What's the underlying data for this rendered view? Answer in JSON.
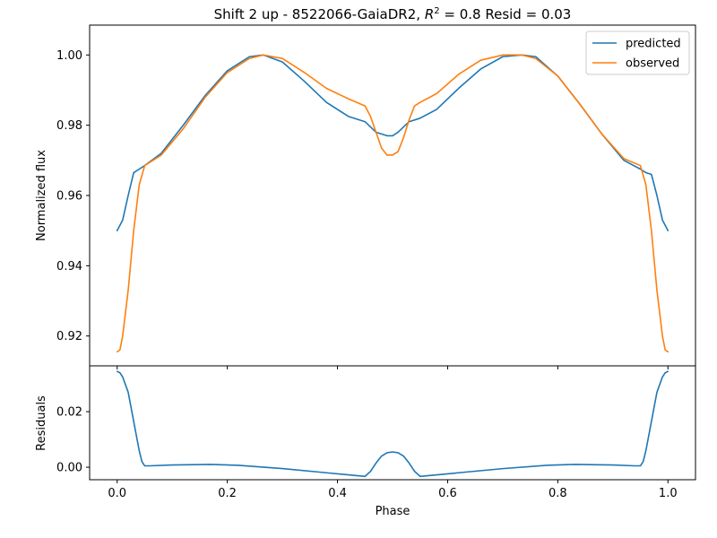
{
  "chart_data": [
    {
      "type": "line",
      "title": "Shift 2 up - 8522066-GaiaDR2, R² = 0.8 Resid = 0.03",
      "title_parts": {
        "prefix": "Shift 2 up - 8522066-GaiaDR2, ",
        "r": "R",
        "sup": "2",
        "suffix": " = 0.8 Resid = 0.03"
      },
      "xlabel": "",
      "ylabel": "Normalized flux",
      "xlim": [
        -0.05,
        1.05
      ],
      "ylim": [
        0.9115,
        1.0085
      ],
      "yticks": [
        0.92,
        0.94,
        0.96,
        0.98,
        1.0
      ],
      "ytick_labels": [
        "0.92",
        "0.94",
        "0.96",
        "0.98",
        "1.00"
      ],
      "grid": false,
      "legend_placement": "top-right",
      "series": [
        {
          "name": "predicted",
          "color": "#1f77b4",
          "x": [
            0,
            0.01,
            0.02,
            0.03,
            0.04,
            0.05,
            0.08,
            0.12,
            0.16,
            0.2,
            0.24,
            0.265,
            0.3,
            0.34,
            0.38,
            0.42,
            0.45,
            0.47,
            0.49,
            0.5,
            0.51,
            0.53,
            0.55,
            0.58,
            0.62,
            0.66,
            0.7,
            0.735,
            0.76,
            0.8,
            0.84,
            0.88,
            0.92,
            0.95,
            0.96,
            0.97,
            0.98,
            0.99,
            1.0
          ],
          "y": [
            0.95,
            0.953,
            0.96,
            0.9665,
            0.9675,
            0.9685,
            0.972,
            0.98,
            0.9885,
            0.9955,
            0.9995,
            1.0,
            0.998,
            0.9925,
            0.9865,
            0.9825,
            0.981,
            0.978,
            0.977,
            0.977,
            0.978,
            0.981,
            0.982,
            0.9845,
            0.9905,
            0.996,
            0.9995,
            1.0,
            0.9995,
            0.994,
            0.986,
            0.9775,
            0.97,
            0.9675,
            0.9665,
            0.966,
            0.96,
            0.953,
            0.95
          ]
        },
        {
          "name": "observed",
          "color": "#ff7f0e",
          "x": [
            0,
            0.005,
            0.01,
            0.02,
            0.03,
            0.04,
            0.05,
            0.08,
            0.12,
            0.16,
            0.2,
            0.24,
            0.265,
            0.3,
            0.34,
            0.38,
            0.42,
            0.45,
            0.46,
            0.47,
            0.48,
            0.49,
            0.5,
            0.51,
            0.52,
            0.53,
            0.54,
            0.55,
            0.58,
            0.62,
            0.66,
            0.7,
            0.735,
            0.76,
            0.8,
            0.84,
            0.88,
            0.92,
            0.95,
            0.96,
            0.97,
            0.98,
            0.99,
            0.995,
            1.0
          ],
          "y": [
            0.9155,
            0.916,
            0.92,
            0.933,
            0.95,
            0.963,
            0.9685,
            0.9715,
            0.979,
            0.988,
            0.995,
            0.999,
            1.0,
            0.999,
            0.995,
            0.9905,
            0.9875,
            0.9855,
            0.9825,
            0.978,
            0.9735,
            0.9715,
            0.9715,
            0.9725,
            0.9765,
            0.9815,
            0.9855,
            0.9865,
            0.989,
            0.9945,
            0.9985,
            1.0,
            1.0,
            0.999,
            0.994,
            0.986,
            0.9775,
            0.9705,
            0.9685,
            0.963,
            0.95,
            0.933,
            0.92,
            0.916,
            0.9155
          ]
        }
      ]
    },
    {
      "type": "line",
      "title": "",
      "xlabel": "Phase",
      "ylabel": "Residuals",
      "xlim": [
        -0.05,
        1.05
      ],
      "ylim": [
        -0.0045,
        0.0365
      ],
      "xticks": [
        0.0,
        0.2,
        0.4,
        0.6,
        0.8,
        1.0
      ],
      "xtick_labels": [
        "0.0",
        "0.2",
        "0.4",
        "0.6",
        "0.8",
        "1.0"
      ],
      "yticks": [
        0.0,
        0.02
      ],
      "ytick_labels": [
        "0.00",
        "0.02"
      ],
      "grid": false,
      "series": [
        {
          "color": "#1f77b4",
          "x": [
            0,
            0.005,
            0.01,
            0.02,
            0.03,
            0.04,
            0.045,
            0.05,
            0.06,
            0.1,
            0.17,
            0.22,
            0.3,
            0.38,
            0.45,
            0.46,
            0.47,
            0.48,
            0.49,
            0.5,
            0.51,
            0.52,
            0.53,
            0.54,
            0.55,
            0.62,
            0.7,
            0.78,
            0.83,
            0.9,
            0.94,
            0.95,
            0.955,
            0.96,
            0.97,
            0.98,
            0.99,
            0.995,
            1.0
          ],
          "y": [
            0.0345,
            0.034,
            0.0325,
            0.027,
            0.0165,
            0.006,
            0.002,
            0.0005,
            0.0005,
            0.0008,
            0.001,
            0.0007,
            -0.0005,
            -0.002,
            -0.0033,
            -0.0015,
            0.0015,
            0.004,
            0.0052,
            0.0055,
            0.0052,
            0.004,
            0.0015,
            -0.0015,
            -0.0033,
            -0.002,
            -0.0005,
            0.0007,
            0.001,
            0.0008,
            0.0005,
            0.0005,
            0.002,
            0.006,
            0.0165,
            0.027,
            0.0325,
            0.034,
            0.0345
          ]
        }
      ]
    }
  ]
}
